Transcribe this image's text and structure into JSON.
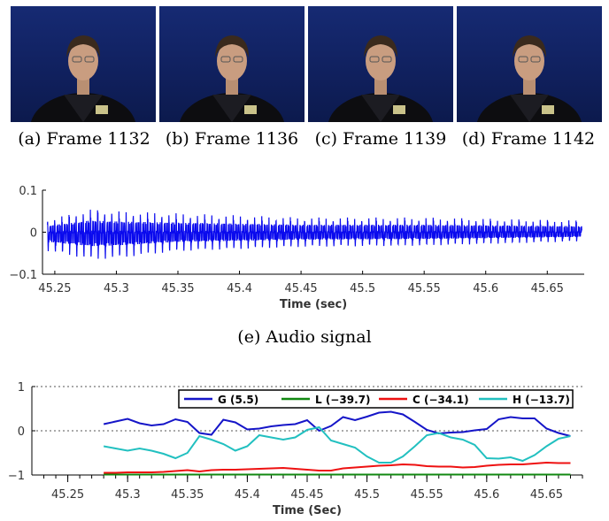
{
  "frames": [
    {
      "caption": "(a) Frame 1132"
    },
    {
      "caption": "(b) Frame 1136"
    },
    {
      "caption": "(c) Frame 1139"
    },
    {
      "caption": "(d) Frame 1142"
    }
  ],
  "captions": {
    "audio": "(e) Audio signal"
  },
  "colors": {
    "audio": "#0a0aee",
    "G": "#1515c8",
    "L": "#118811",
    "C": "#ee1111",
    "H": "#22c0c0"
  },
  "chart_data": [
    {
      "type": "line",
      "title": "",
      "xlabel": "Time (sec)",
      "ylabel": "",
      "xlim": [
        45.24,
        45.68
      ],
      "ylim": [
        -0.1,
        0.1
      ],
      "xticks": [
        "45.25",
        "45.3",
        "45.35",
        "45.4",
        "45.45",
        "45.5",
        "45.55",
        "45.6",
        "45.65"
      ],
      "yticks": [
        "0.1",
        "0",
        "−0.1"
      ],
      "signal": {
        "start": 45.244,
        "end": 45.678,
        "period": 0.0058,
        "envelope_t": [
          45.244,
          45.28,
          45.3,
          45.35,
          45.45,
          45.55,
          45.678
        ],
        "envelope_max": [
          0.03,
          0.055,
          0.05,
          0.045,
          0.035,
          0.035,
          0.028
        ],
        "envelope_min": [
          -0.045,
          -0.065,
          -0.062,
          -0.045,
          -0.035,
          -0.032,
          -0.022
        ]
      },
      "grid": false
    },
    {
      "type": "line",
      "title": "",
      "xlabel": "Time (Sec)",
      "ylabel": "",
      "xlim": [
        45.22,
        45.68
      ],
      "ylim": [
        -1,
        1
      ],
      "xticks": [
        "45.25",
        "45.3",
        "45.35",
        "45.4",
        "45.45",
        "45.5",
        "45.55",
        "45.6",
        "45.65"
      ],
      "yticks": [
        "1",
        "0",
        "−1"
      ],
      "grid": "horizontal dotted",
      "legend_position": "top-right",
      "x": [
        45.28,
        45.29,
        45.3,
        45.31,
        45.32,
        45.33,
        45.34,
        45.35,
        45.36,
        45.37,
        45.38,
        45.39,
        45.4,
        45.41,
        45.42,
        45.43,
        45.44,
        45.45,
        45.46,
        45.47,
        45.48,
        45.49,
        45.5,
        45.51,
        45.52,
        45.53,
        45.54,
        45.55,
        45.56,
        45.57,
        45.58,
        45.59,
        45.6,
        45.61,
        45.62,
        45.63,
        45.64,
        45.65,
        45.66,
        45.67
      ],
      "series": [
        {
          "name": "G (5.5)",
          "values": [
            0.15,
            0.21,
            0.27,
            0.17,
            0.12,
            0.15,
            0.26,
            0.2,
            -0.05,
            -0.09,
            0.25,
            0.19,
            0.03,
            0.05,
            0.1,
            0.13,
            0.15,
            0.24,
            0.0,
            0.11,
            0.31,
            0.24,
            0.32,
            0.41,
            0.43,
            0.37,
            0.2,
            0.02,
            -0.06,
            -0.04,
            -0.03,
            0.01,
            0.04,
            0.26,
            0.31,
            0.28,
            0.28,
            0.05,
            -0.05,
            -0.12
          ]
        },
        {
          "name": "L (−39.7)",
          "values": [
            -0.99,
            -0.99,
            -0.99,
            -0.99,
            -0.99,
            -0.99,
            -0.99,
            -0.99,
            -0.99,
            -0.99,
            -0.99,
            -0.99,
            -0.99,
            -0.99,
            -0.99,
            -0.99,
            -0.99,
            -0.99,
            -0.99,
            -0.99,
            -0.99,
            -0.99,
            -0.99,
            -0.99,
            -0.99,
            -0.99,
            -0.99,
            -0.99,
            -0.99,
            -0.99,
            -0.99,
            -0.99,
            -0.99,
            -0.99,
            -0.99,
            -0.99,
            -0.99,
            -0.99,
            -0.99,
            -0.99
          ]
        },
        {
          "name": "C (−34.1)",
          "values": [
            -0.95,
            -0.95,
            -0.94,
            -0.94,
            -0.94,
            -0.93,
            -0.91,
            -0.89,
            -0.92,
            -0.89,
            -0.88,
            -0.88,
            -0.87,
            -0.86,
            -0.85,
            -0.84,
            -0.86,
            -0.88,
            -0.9,
            -0.9,
            -0.85,
            -0.83,
            -0.81,
            -0.79,
            -0.78,
            -0.76,
            -0.77,
            -0.8,
            -0.81,
            -0.81,
            -0.83,
            -0.82,
            -0.79,
            -0.77,
            -0.76,
            -0.76,
            -0.74,
            -0.72,
            -0.73,
            -0.73
          ]
        },
        {
          "name": "H (−13.7)",
          "values": [
            -0.35,
            -0.4,
            -0.45,
            -0.4,
            -0.45,
            -0.52,
            -0.62,
            -0.5,
            -0.12,
            -0.2,
            -0.3,
            -0.45,
            -0.35,
            -0.1,
            -0.15,
            -0.2,
            -0.15,
            0.02,
            0.08,
            -0.22,
            -0.3,
            -0.38,
            -0.58,
            -0.72,
            -0.72,
            -0.58,
            -0.35,
            -0.1,
            -0.05,
            -0.15,
            -0.2,
            -0.32,
            -0.62,
            -0.63,
            -0.6,
            -0.68,
            -0.55,
            -0.35,
            -0.18,
            -0.12
          ]
        }
      ]
    }
  ]
}
